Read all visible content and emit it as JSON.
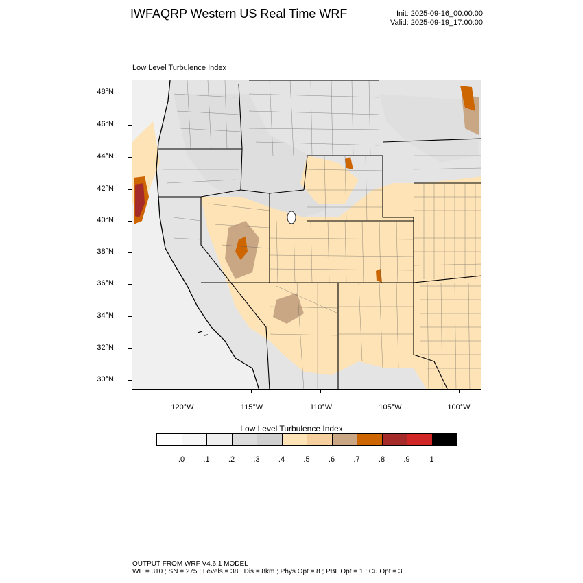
{
  "header": {
    "title": "IWFAQRP Western US Real Time WRF",
    "init": "Init: 2025-09-16_00:00:00",
    "valid": "Valid: 2025-09-19_17:00:00"
  },
  "map": {
    "subtitle": "Low Level Turbulence Index",
    "lat_labels": [
      "48°N",
      "46°N",
      "44°N",
      "42°N",
      "40°N",
      "38°N",
      "36°N",
      "34°N",
      "32°N",
      "30°N"
    ],
    "lon_labels": [
      "120°W",
      "115°W",
      "110°W",
      "105°W",
      "100°W"
    ],
    "ocean_color": "#f0f0f0",
    "land_color": "#e4e4e4"
  },
  "colorbar": {
    "title": "Low Level Turbulence Index",
    "colors": [
      "#ffffff",
      "#f7f7f7",
      "#efefef",
      "#dcdcdc",
      "#cfcfcf",
      "#fde3b6",
      "#f5d09e",
      "#c9a785",
      "#cd6500",
      "#a52a2a",
      "#d02626",
      "#000000"
    ],
    "labels": [
      ".0",
      ".1",
      ".2",
      ".3",
      ".4",
      ".5",
      ".6",
      ".7",
      ".8",
      ".9",
      "1"
    ]
  },
  "footer": {
    "line1": "OUTPUT FROM WRF V4.6.1 MODEL",
    "line2": "WE = 310 ; SN = 275 ; Levels = 38 ; Dis = 8km ; Phys Opt = 8 ; PBL Opt = 1 ; Cu Opt = 3"
  }
}
